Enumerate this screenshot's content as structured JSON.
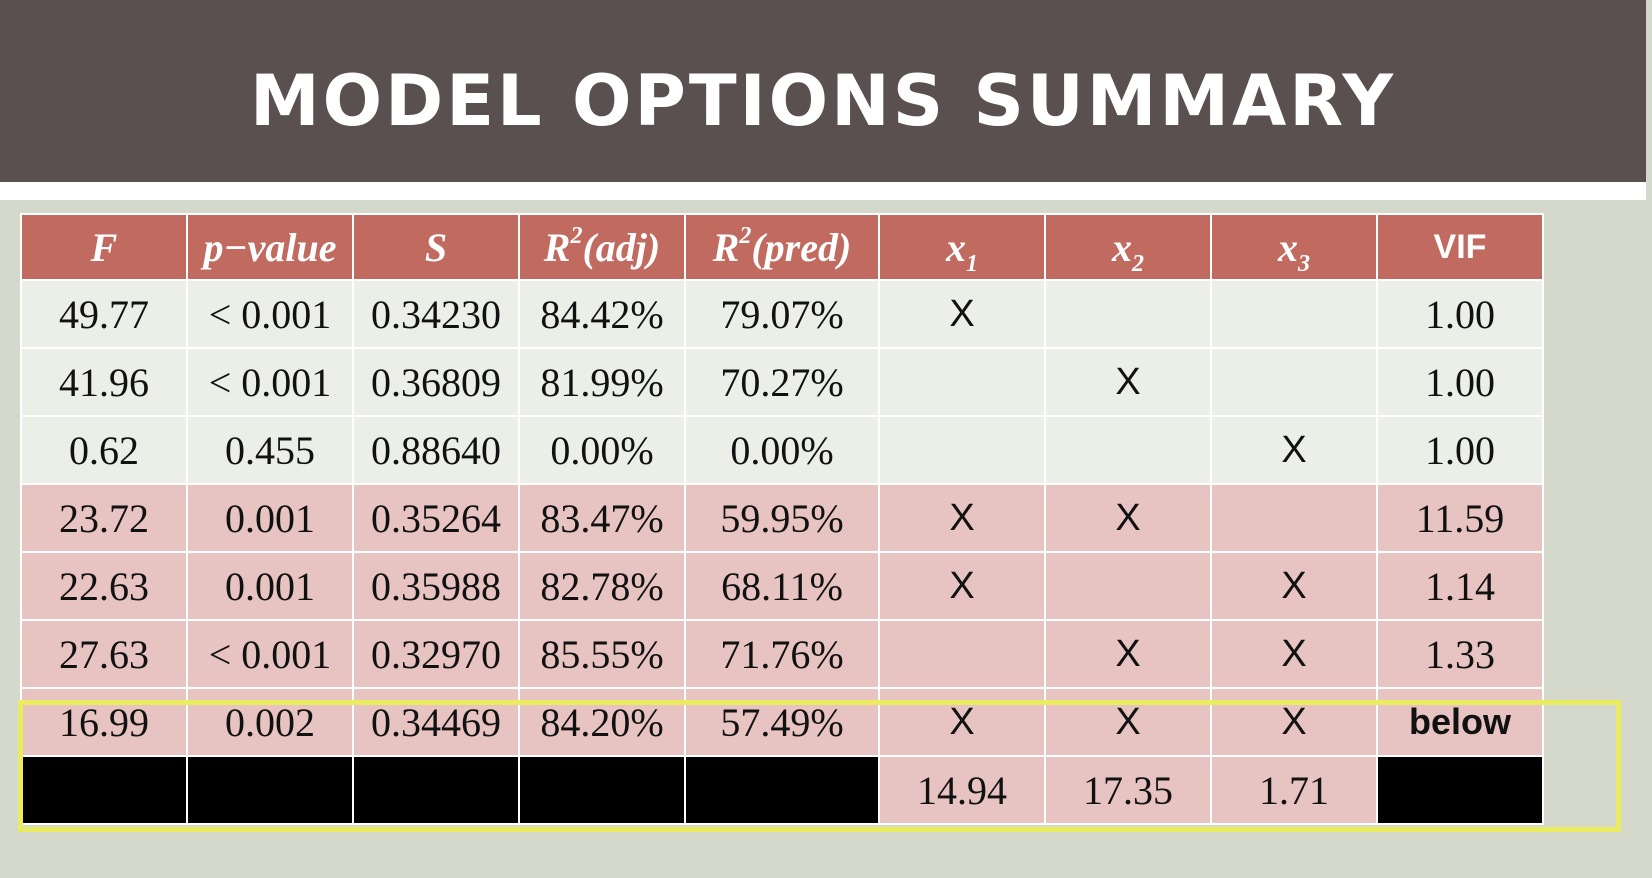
{
  "title": "MODEL OPTIONS SUMMARY",
  "headers": {
    "f": "F",
    "pvalue": "p−value",
    "s": "S",
    "r2adj": "(adj)",
    "r2pred": "(pred)",
    "r_letter": "R",
    "r_sup": "2",
    "x_letter": "x",
    "x1_sub": "1",
    "x2_sub": "2",
    "x3_sub": "3",
    "vif": "VIF"
  },
  "rows": [
    [
      "49.77",
      "< 0.001",
      "0.34230",
      "84.42%",
      "79.07%",
      "X",
      "",
      "",
      "1.00"
    ],
    [
      "41.96",
      "< 0.001",
      "0.36809",
      "81.99%",
      "70.27%",
      "",
      "X",
      "",
      "1.00"
    ],
    [
      "0.62",
      "0.455",
      "0.88640",
      "0.00%",
      "0.00%",
      "",
      "",
      "X",
      "1.00"
    ],
    [
      "23.72",
      "0.001",
      "0.35264",
      "83.47%",
      "59.95%",
      "X",
      "X",
      "",
      "11.59"
    ],
    [
      "22.63",
      "0.001",
      "0.35988",
      "82.78%",
      "68.11%",
      "X",
      "",
      "X",
      "1.14"
    ],
    [
      "27.63",
      "< 0.001",
      "0.32970",
      "85.55%",
      "71.76%",
      "",
      "X",
      "X",
      "1.33"
    ],
    [
      "16.99",
      "0.002",
      "0.34469",
      "84.20%",
      "57.49%",
      "X",
      "X",
      "X",
      "below"
    ]
  ],
  "vif_row": [
    "14.94",
    "17.35",
    "1.71"
  ],
  "colors": {
    "header_band": "#5a5050",
    "table_header": "#c06a60",
    "row_light": "#eceee8",
    "row_pink": "#e7c4c1",
    "highlight": "#e9ec5e"
  }
}
